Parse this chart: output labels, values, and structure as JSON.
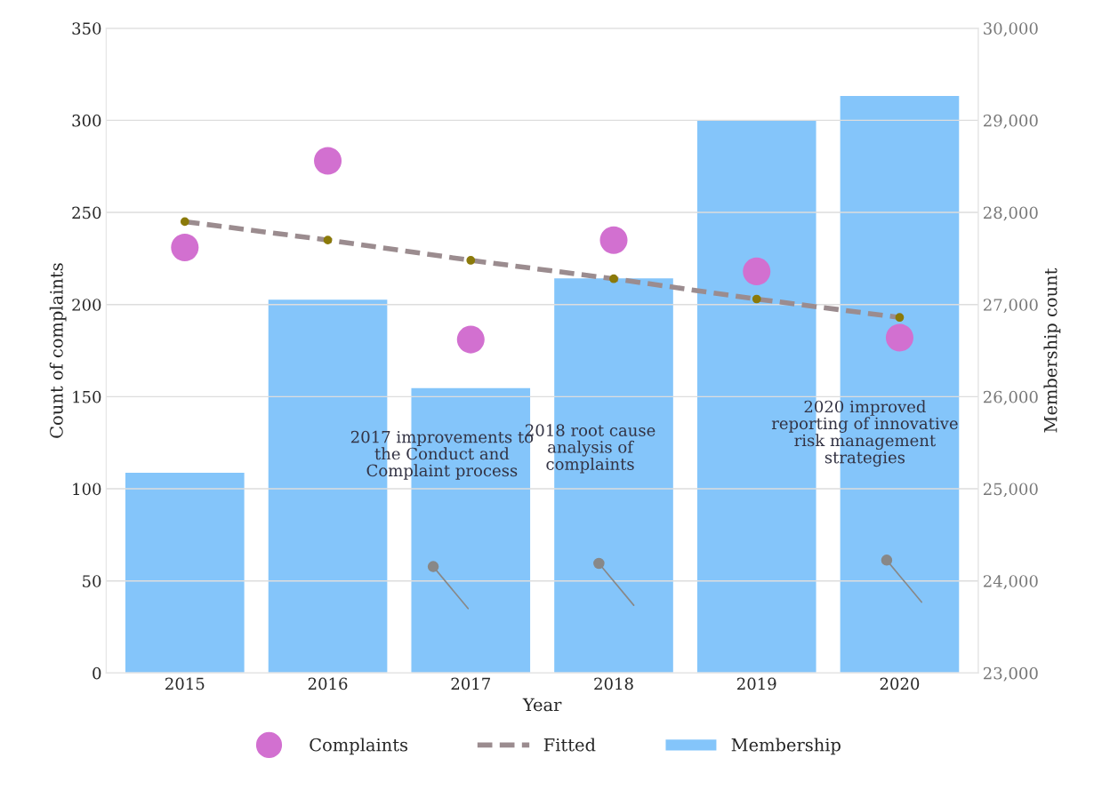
{
  "chart_data": {
    "type": "bar",
    "xlabel": "Year",
    "ylabel": "Count of complaints",
    "y2label": "Membership count",
    "categories": [
      "2015",
      "2016",
      "2017",
      "2018",
      "2019",
      "2020"
    ],
    "series": [
      {
        "name": "Complaints",
        "type": "scatter",
        "color": "#d270d0",
        "marker": "circle",
        "values": [
          231,
          278,
          181,
          235,
          218,
          182
        ]
      },
      {
        "name": "Fitted",
        "type": "line",
        "color": "#9b8c8f",
        "line_style": "dashed",
        "marker": "circle",
        "values": [
          245,
          235,
          224,
          214,
          203,
          193
        ]
      },
      {
        "name": "Membership",
        "color": "#84c5fa",
        "axis": "y2",
        "values": [
          25180,
          27060,
          26100,
          27290,
          29000,
          29270
        ]
      }
    ],
    "ylim": [
      0,
      350
    ],
    "yticks": [
      0,
      50,
      100,
      150,
      200,
      250,
      300,
      350
    ],
    "y2lim": [
      23000,
      30000
    ],
    "y2ticks": [
      {
        "value": 23000,
        "label": "23,000"
      },
      {
        "value": 24000,
        "label": "24,000"
      },
      {
        "value": 25000,
        "label": "25,000"
      },
      {
        "value": 26000,
        "label": "26,000"
      },
      {
        "value": 27000,
        "label": "27,000"
      },
      {
        "value": 28000,
        "label": "28,000"
      },
      {
        "value": 29000,
        "label": "29,000"
      },
      {
        "value": 30000,
        "label": "30,000"
      }
    ],
    "grid": "y",
    "legend": "bottom",
    "annotations": [
      "2017 improvements to\nthe Conduct and\nComplaint process",
      "2018 root cause\nanalysis of\ncomplaints",
      "2020 improved\nreporting of innovative\nrisk management\nstrategies"
    ]
  }
}
